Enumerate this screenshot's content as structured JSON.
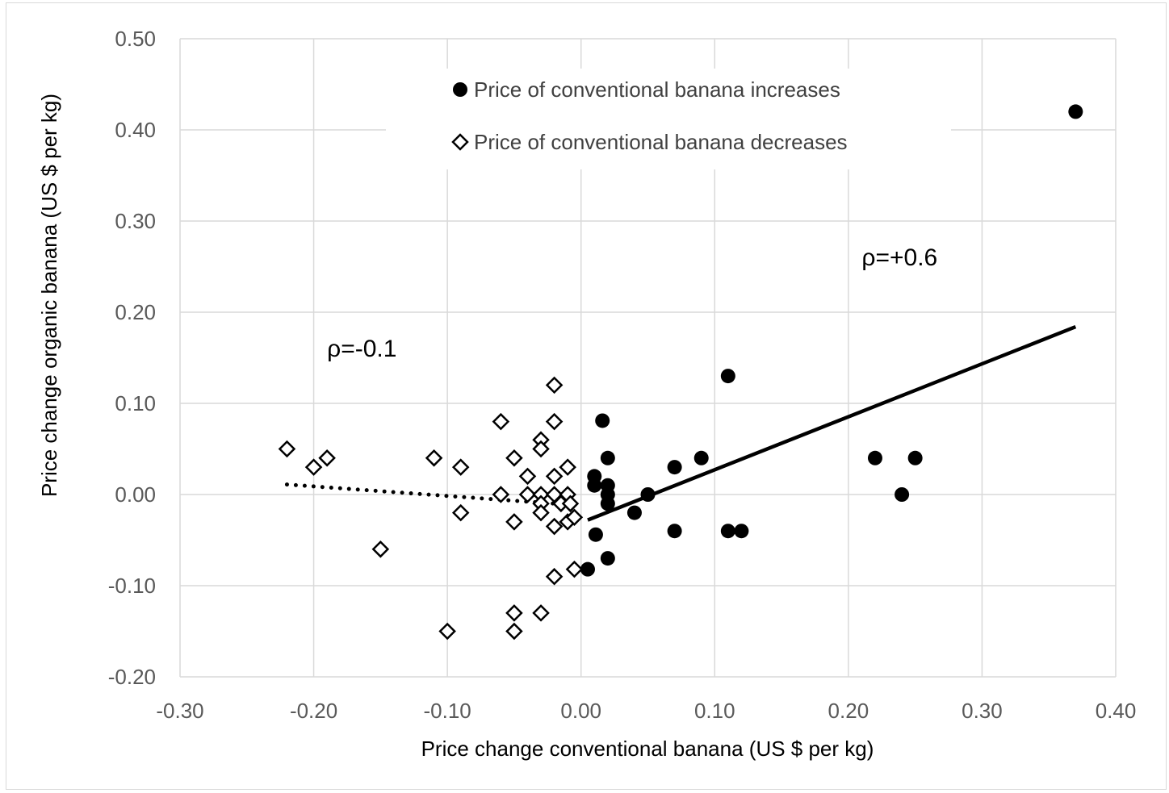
{
  "chart_data": {
    "type": "scatter",
    "title": "",
    "xlabel": "Price change conventional banana (US $ per kg)",
    "ylabel": "Price change organic banana (US $ per kg)",
    "xlim": [
      -0.3,
      0.4
    ],
    "ylim": [
      -0.2,
      0.5
    ],
    "x_ticks": [
      "-0.30",
      "-0.20",
      "-0.10",
      "0.00",
      "0.10",
      "0.20",
      "0.30",
      "0.40"
    ],
    "y_ticks": [
      "0.50",
      "0.40",
      "0.30",
      "0.20",
      "0.10",
      "0.00",
      "-0.10",
      "-0.20"
    ],
    "x_tick_values": [
      -0.3,
      -0.2,
      -0.1,
      0.0,
      0.1,
      0.2,
      0.3,
      0.4
    ],
    "y_tick_values": [
      0.5,
      0.4,
      0.3,
      0.2,
      0.1,
      0.0,
      -0.1,
      -0.2
    ],
    "grid": true,
    "legend_position": "top-center",
    "series": [
      {
        "name": "Price of conventional banana increases",
        "marker": "filled-circle",
        "color": "#000000",
        "points": [
          [
            0.37,
            0.42
          ],
          [
            0.11,
            0.13
          ],
          [
            0.016,
            0.081
          ],
          [
            0.02,
            0.04
          ],
          [
            0.01,
            0.02
          ],
          [
            0.01,
            0.01
          ],
          [
            0.02,
            0.01
          ],
          [
            0.02,
            0.0
          ],
          [
            0.02,
            -0.01
          ],
          [
            0.05,
            0.0
          ],
          [
            0.04,
            -0.02
          ],
          [
            0.07,
            0.03
          ],
          [
            0.09,
            0.04
          ],
          [
            0.07,
            -0.04
          ],
          [
            0.11,
            -0.04
          ],
          [
            0.12,
            -0.04
          ],
          [
            0.011,
            -0.044
          ],
          [
            0.02,
            -0.07
          ],
          [
            0.005,
            -0.082
          ],
          [
            0.22,
            0.04
          ],
          [
            0.25,
            0.04
          ],
          [
            0.24,
            0.0
          ]
        ],
        "trendline": {
          "style": "solid",
          "x": [
            0.005,
            0.37
          ],
          "y": [
            -0.028,
            0.184
          ]
        }
      },
      {
        "name": "Price of conventional banana decreases",
        "marker": "open-diamond",
        "color": "#000000",
        "points": [
          [
            -0.22,
            0.05
          ],
          [
            -0.2,
            0.03
          ],
          [
            -0.19,
            0.04
          ],
          [
            -0.15,
            -0.06
          ],
          [
            -0.11,
            0.04
          ],
          [
            -0.1,
            -0.15
          ],
          [
            -0.09,
            0.03
          ],
          [
            -0.09,
            -0.02
          ],
          [
            -0.06,
            0.08
          ],
          [
            -0.06,
            0.0
          ],
          [
            -0.05,
            0.04
          ],
          [
            -0.05,
            -0.03
          ],
          [
            -0.05,
            -0.13
          ],
          [
            -0.05,
            -0.15
          ],
          [
            -0.04,
            0.02
          ],
          [
            -0.04,
            0.0
          ],
          [
            -0.03,
            0.06
          ],
          [
            -0.03,
            0.05
          ],
          [
            -0.03,
            0.0
          ],
          [
            -0.03,
            -0.01
          ],
          [
            -0.03,
            -0.02
          ],
          [
            -0.03,
            -0.13
          ],
          [
            -0.02,
            0.12
          ],
          [
            -0.02,
            0.08
          ],
          [
            -0.02,
            0.02
          ],
          [
            -0.02,
            0.0
          ],
          [
            -0.02,
            -0.035
          ],
          [
            -0.02,
            -0.09
          ],
          [
            -0.015,
            -0.01
          ],
          [
            -0.01,
            0.03
          ],
          [
            -0.01,
            0.0
          ],
          [
            -0.01,
            -0.03
          ],
          [
            -0.008,
            -0.01
          ],
          [
            -0.005,
            -0.025
          ],
          [
            -0.005,
            -0.082
          ]
        ],
        "trendline": {
          "style": "dotted",
          "x": [
            -0.22,
            -0.01
          ],
          "y": [
            0.011,
            -0.011
          ]
        }
      }
    ],
    "annotations": [
      {
        "text": "ρ=+0.6",
        "x": 0.21,
        "y": 0.26
      },
      {
        "text": "ρ=-0.1",
        "x": -0.19,
        "y": 0.16
      }
    ]
  }
}
